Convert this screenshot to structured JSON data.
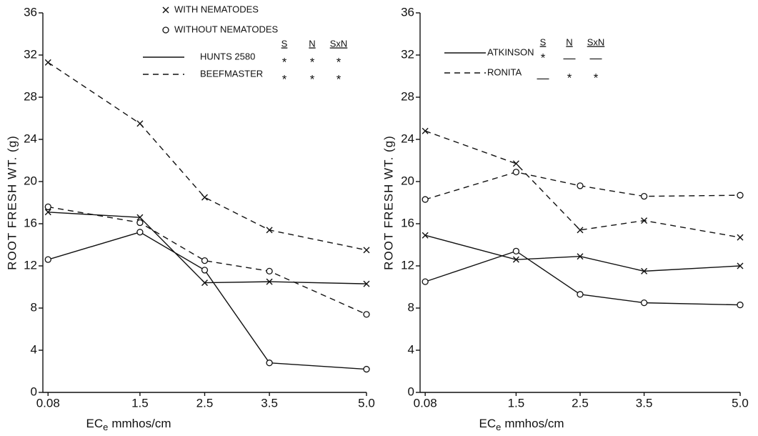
{
  "chart_data": [
    {
      "type": "line",
      "y_label": "ROOT FRESH WT. (g)",
      "x_label": {
        "main": "EC",
        "subscript": "e",
        "rest": "mmhos/cm"
      },
      "x": [
        0.08,
        1.5,
        2.5,
        3.5,
        5.0
      ],
      "xlim": [
        0,
        5
      ],
      "xticks": [
        0.08,
        1.5,
        2.5,
        3.5,
        {
          "value": 5,
          "label": "5.0"
        }
      ],
      "ylim": [
        0,
        36
      ],
      "yticks": [
        0,
        4,
        8,
        12,
        16,
        20,
        24,
        28,
        32,
        36
      ],
      "markers": [
        {
          "symbol": "x",
          "label": "WITH NEMATODES"
        },
        {
          "symbol": "o",
          "label": "WITHOUT NEMATODES"
        }
      ],
      "significance_headers": [
        "S",
        "N",
        "SxN"
      ],
      "series": [
        {
          "name": "HUNTS 2580",
          "dashed": false,
          "color": "#111",
          "significance": [
            "*",
            "*",
            "*"
          ],
          "with_nematodes": [
            17.1,
            16.6,
            10.4,
            10.5,
            10.3
          ],
          "without_nematodes": [
            12.6,
            15.2,
            11.6,
            2.8,
            2.2
          ]
        },
        {
          "name": "BEEFMASTER",
          "dashed": true,
          "color": "#111",
          "significance": [
            "*",
            "*",
            "*"
          ],
          "with_nematodes": [
            31.3,
            25.5,
            18.5,
            15.4,
            13.5
          ],
          "without_nematodes": [
            17.6,
            16.1,
            12.5,
            11.5,
            7.4
          ]
        }
      ]
    },
    {
      "type": "line",
      "y_label": "ROOT FRESH WT. (g)",
      "x_label": {
        "main": "EC",
        "subscript": "e",
        "rest": "mmhos/cm"
      },
      "x": [
        0.08,
        1.5,
        2.5,
        3.5,
        5.0
      ],
      "xlim": [
        0,
        5
      ],
      "xticks": [
        0.08,
        1.5,
        2.5,
        3.5,
        {
          "value": 5,
          "label": "5.0"
        }
      ],
      "ylim": [
        0,
        36
      ],
      "yticks": [
        0,
        4,
        8,
        12,
        16,
        20,
        24,
        28,
        32,
        36
      ],
      "significance_headers": [
        "S",
        "N",
        "SxN"
      ],
      "series": [
        {
          "name": "ATKINSON",
          "dashed": false,
          "color": "#111",
          "significance": [
            "*",
            "—",
            "—"
          ],
          "with_nematodes": [
            14.9,
            12.6,
            12.9,
            11.5,
            12.0
          ],
          "without_nematodes": [
            10.5,
            13.4,
            9.3,
            8.5,
            8.3
          ]
        },
        {
          "name": "RONITA",
          "dashed": true,
          "color": "#111",
          "significance": [
            "—",
            "*",
            "*"
          ],
          "with_nematodes": [
            24.8,
            21.7,
            15.4,
            16.3,
            14.7
          ],
          "without_nematodes": [
            18.3,
            20.9,
            19.6,
            18.6,
            18.7
          ]
        }
      ]
    }
  ]
}
